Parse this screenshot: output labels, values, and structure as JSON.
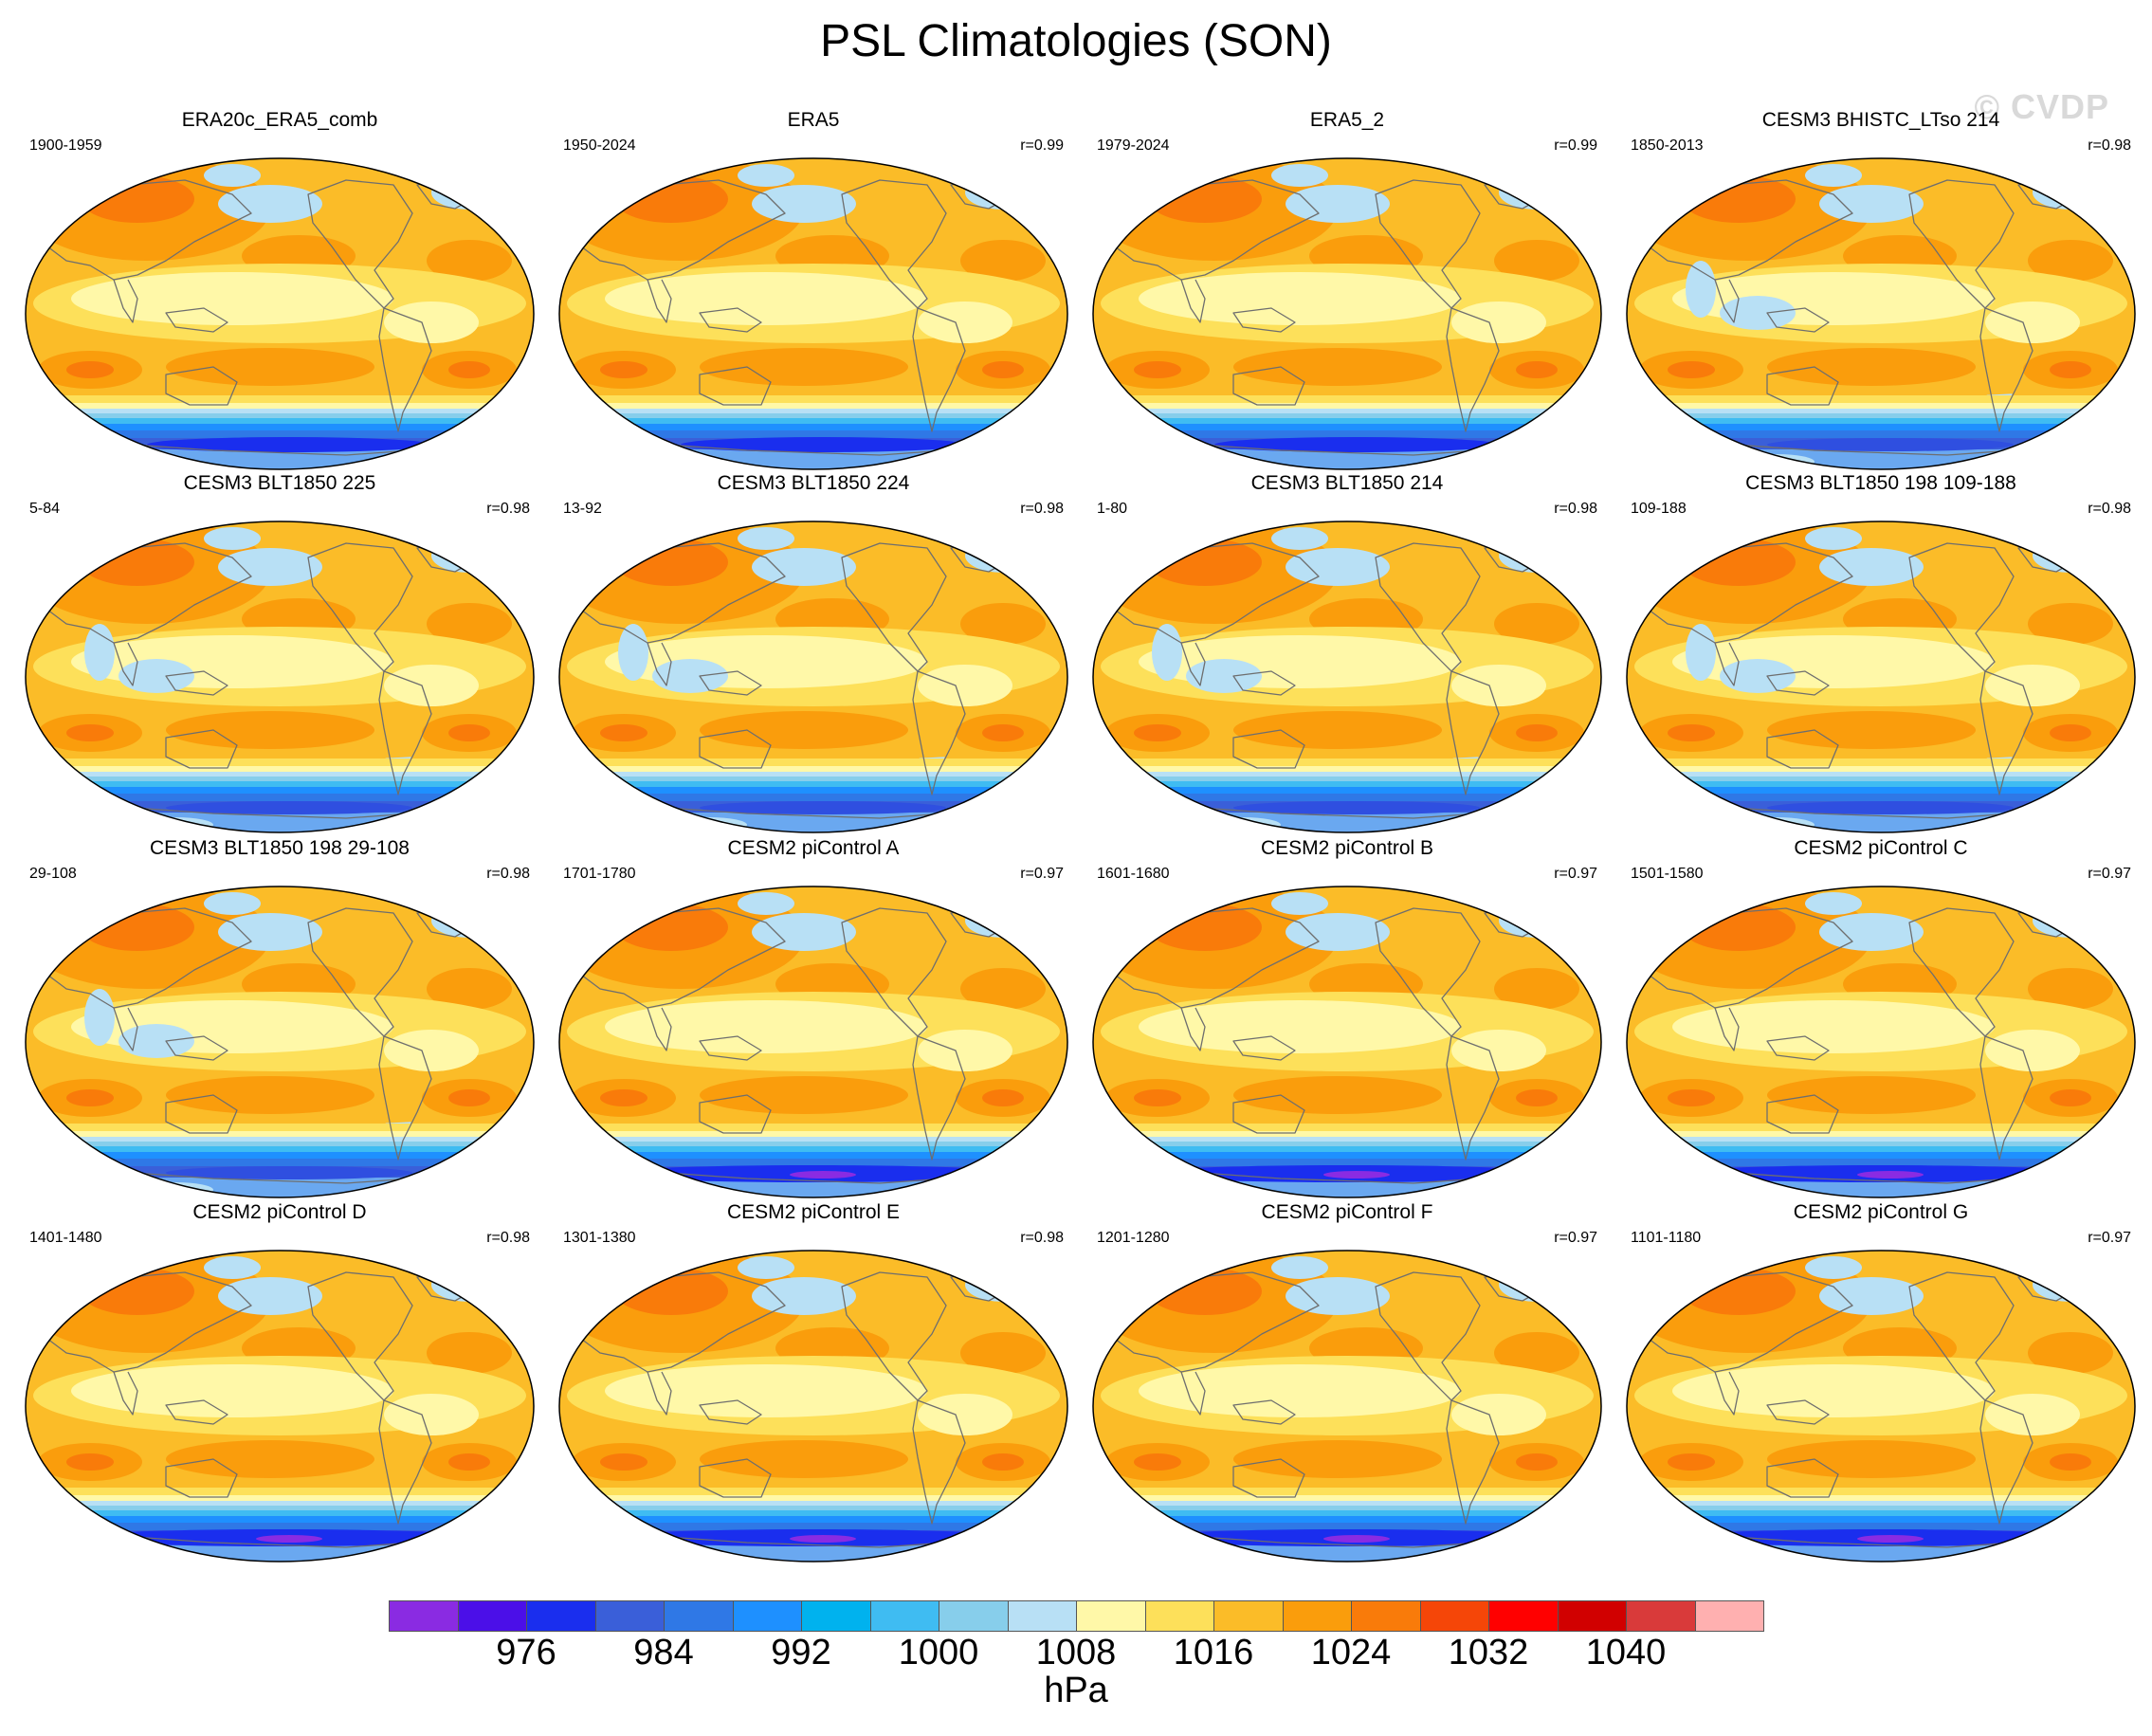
{
  "title": "PSL Climatologies (SON)",
  "watermark": "© CVDP",
  "panels": [
    {
      "title": "ERA20c_ERA5_comb",
      "years": "1900-1959",
      "corr": "",
      "variant": "obs"
    },
    {
      "title": "ERA5",
      "years": "1950-2024",
      "corr": "r=0.99",
      "variant": "obs"
    },
    {
      "title": "ERA5_2",
      "years": "1979-2024",
      "corr": "r=0.99",
      "variant": "obs"
    },
    {
      "title": "CESM3 BHISTC_LTso 214",
      "years": "1850-2013",
      "corr": "r=0.98",
      "variant": "cesm3"
    },
    {
      "title": "CESM3 BLT1850 225",
      "years": "5-84",
      "corr": "r=0.98",
      "variant": "cesm3"
    },
    {
      "title": "CESM3 BLT1850 224",
      "years": "13-92",
      "corr": "r=0.98",
      "variant": "cesm3"
    },
    {
      "title": "CESM3 BLT1850 214",
      "years": "1-80",
      "corr": "r=0.98",
      "variant": "cesm3"
    },
    {
      "title": "CESM3 BLT1850 198 109-188",
      "years": "109-188",
      "corr": "r=0.98",
      "variant": "cesm3"
    },
    {
      "title": "CESM3 BLT1850 198 29-108",
      "years": "29-108",
      "corr": "r=0.98",
      "variant": "cesm3"
    },
    {
      "title": "CESM2 piControl A",
      "years": "1701-1780",
      "corr": "r=0.97",
      "variant": "cesm2"
    },
    {
      "title": "CESM2 piControl B",
      "years": "1601-1680",
      "corr": "r=0.97",
      "variant": "cesm2"
    },
    {
      "title": "CESM2 piControl C",
      "years": "1501-1580",
      "corr": "r=0.97",
      "variant": "cesm2"
    },
    {
      "title": "CESM2 piControl D",
      "years": "1401-1480",
      "corr": "r=0.98",
      "variant": "cesm2"
    },
    {
      "title": "CESM2 piControl E",
      "years": "1301-1380",
      "corr": "r=0.98",
      "variant": "cesm2"
    },
    {
      "title": "CESM2 piControl F",
      "years": "1201-1280",
      "corr": "r=0.97",
      "variant": "cesm2"
    },
    {
      "title": "CESM2 piControl G",
      "years": "1101-1180",
      "corr": "r=0.97",
      "variant": "cesm2"
    }
  ],
  "colorbar": {
    "colors": [
      "#8a2be2",
      "#4b0fe8",
      "#1a2eee",
      "#3a5fd9",
      "#2f78e6",
      "#1e90ff",
      "#00b2ee",
      "#3fbcf2",
      "#87ceeb",
      "#b8e0f5",
      "#fff8a8",
      "#fde05a",
      "#fbbc28",
      "#fa9d0c",
      "#f97b0a",
      "#f54608",
      "#ff0000",
      "#d10000",
      "#d93a3a",
      "#ffb0b0"
    ],
    "labels": [
      "976",
      "984",
      "992",
      "1000",
      "1008",
      "1016",
      "1024",
      "1032",
      "1040"
    ],
    "units": "hPa"
  }
}
